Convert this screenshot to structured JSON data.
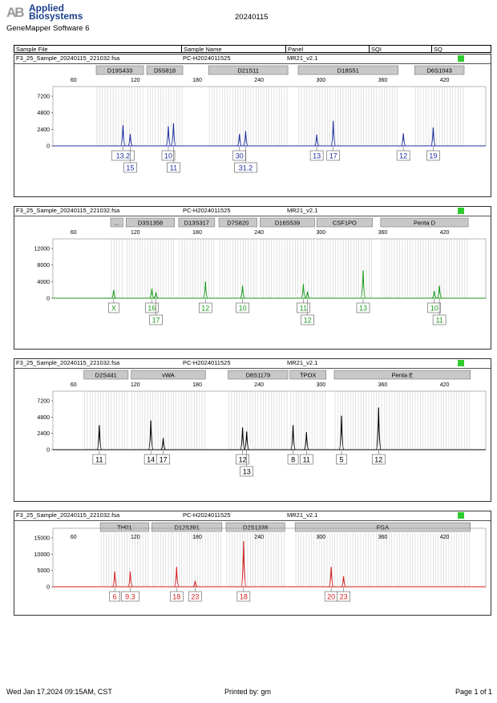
{
  "header": {
    "logo_mark": "AB",
    "brand_line1": "Applied",
    "brand_line2": "Biosystems",
    "software": "GeneMapper Software 6",
    "title": "20240115"
  },
  "columns": [
    "Sample File",
    "Sample Name",
    "Panel",
    "SQI",
    "SQ"
  ],
  "footer": {
    "date": "Wed Jan 17,2024 09:15AM, CST",
    "printed_by": "Printed by: gm",
    "page": "Page 1 of 1"
  },
  "panels": [
    {
      "sample_file": "F3_25_Sample_20240115_221032.fsa",
      "sample_name": "PC-H2024011525",
      "panel": "MR21_v2.1",
      "color": "#1f2fa0",
      "quality_color": "#2ecc2e",
      "x_ticks": [
        "60",
        "120",
        "180",
        "240",
        "300",
        "360",
        "420"
      ],
      "y_ticks": [
        "7200",
        "4800",
        "2400",
        "0"
      ],
      "loci": [
        {
          "label": "D19S433",
          "from": 82,
          "to": 128
        },
        {
          "label": "D5S818",
          "from": 131,
          "to": 166
        },
        {
          "label": "D21S11",
          "from": 191,
          "to": 268
        },
        {
          "label": "D18S51",
          "from": 278,
          "to": 375
        },
        {
          "label": "D6S1043",
          "from": 391,
          "to": 439
        }
      ],
      "alleles": [
        {
          "label": "13.2",
          "pos": 108,
          "height": 0.35,
          "row": 1
        },
        {
          "label": "15",
          "pos": 115,
          "height": 0.2,
          "row": 2
        },
        {
          "label": "10",
          "pos": 152,
          "height": 0.33,
          "row": 1
        },
        {
          "label": "11",
          "pos": 157,
          "height": 0.38,
          "row": 2
        },
        {
          "label": "30",
          "pos": 221,
          "height": 0.2,
          "row": 1
        },
        {
          "label": "31.2",
          "pos": 227,
          "height": 0.25,
          "row": 2
        },
        {
          "label": "13",
          "pos": 296,
          "height": 0.19,
          "row": 1
        },
        {
          "label": "17",
          "pos": 312,
          "height": 0.42,
          "row": 1
        },
        {
          "label": "12",
          "pos": 380,
          "height": 0.21,
          "row": 1
        },
        {
          "label": "19",
          "pos": 409,
          "height": 0.31,
          "row": 1
        }
      ]
    },
    {
      "sample_file": "F3_25_Sample_20240115_221032.fsa",
      "sample_name": "PC-H2024011525",
      "panel": "MR21_v2.1",
      "color": "#1c9a1c",
      "quality_color": "#2ecc2e",
      "x_ticks": [
        "60",
        "120",
        "180",
        "240",
        "300",
        "360",
        "420"
      ],
      "y_ticks": [
        "12000",
        "8000",
        "4000",
        "0"
      ],
      "loci": [
        {
          "label": "...",
          "from": 96,
          "to": 108
        },
        {
          "label": "D3S1358",
          "from": 111,
          "to": 158
        },
        {
          "label": "D13S317",
          "from": 162,
          "to": 197
        },
        {
          "label": "D7S820",
          "from": 201,
          "to": 238
        },
        {
          "label": "D16S539",
          "from": 241,
          "to": 294
        },
        {
          "label": "CSF1PO",
          "from": 296,
          "to": 350
        },
        {
          "label": "Penta D",
          "from": 358,
          "to": 443
        }
      ],
      "alleles": [
        {
          "label": "X",
          "pos": 99,
          "height": 0.14,
          "row": 1
        },
        {
          "label": "16",
          "pos": 136,
          "height": 0.16,
          "row": 1
        },
        {
          "label": "17",
          "pos": 140,
          "height": 0.1,
          "row": 2
        },
        {
          "label": "12",
          "pos": 188,
          "height": 0.28,
          "row": 1
        },
        {
          "label": "10",
          "pos": 224,
          "height": 0.21,
          "row": 1
        },
        {
          "label": "11",
          "pos": 283,
          "height": 0.24,
          "row": 1
        },
        {
          "label": "12",
          "pos": 287,
          "height": 0.11,
          "row": 2
        },
        {
          "label": "13",
          "pos": 341,
          "height": 0.47,
          "row": 1
        },
        {
          "label": "10",
          "pos": 410,
          "height": 0.12,
          "row": 1
        },
        {
          "label": "11",
          "pos": 415,
          "height": 0.21,
          "row": 2
        }
      ]
    },
    {
      "sample_file": "F3_25_Sample_20240115_221032.fsa",
      "sample_name": "PC-H2024011525",
      "panel": "MR21_v2.1",
      "color": "#000000",
      "quality_color": "#2ecc2e",
      "x_ticks": [
        "60",
        "120",
        "180",
        "240",
        "300",
        "360",
        "420"
      ],
      "y_ticks": [
        "7200",
        "4800",
        "2400",
        "0"
      ],
      "loci": [
        {
          "label": "D2S441",
          "from": 70,
          "to": 113
        },
        {
          "label": "vWA",
          "from": 116,
          "to": 188
        },
        {
          "label": "D8S1179",
          "from": 210,
          "to": 268
        },
        {
          "label": "TPOX",
          "from": 270,
          "to": 305
        },
        {
          "label": "Penta E",
          "from": 313,
          "to": 445
        }
      ],
      "alleles": [
        {
          "label": "11",
          "pos": 85,
          "height": 0.42,
          "row": 1
        },
        {
          "label": "14",
          "pos": 135,
          "height": 0.5,
          "row": 1
        },
        {
          "label": "17",
          "pos": 147,
          "height": 0.2,
          "row": 1
        },
        {
          "label": "12",
          "pos": 224,
          "height": 0.38,
          "row": 1
        },
        {
          "label": "13",
          "pos": 228,
          "height": 0.31,
          "row": 2
        },
        {
          "label": "8",
          "pos": 273,
          "height": 0.42,
          "row": 1
        },
        {
          "label": "11",
          "pos": 286,
          "height": 0.3,
          "row": 1
        },
        {
          "label": "5",
          "pos": 320,
          "height": 0.58,
          "row": 1
        },
        {
          "label": "12",
          "pos": 356,
          "height": 0.72,
          "row": 1
        }
      ]
    },
    {
      "sample_file": "F3_25_Sample_20240115_221032.fsa",
      "sample_name": "PC-H2024011525",
      "panel": "MR21_v2.1",
      "color": "#d41f1f",
      "quality_color": "#2ecc2e",
      "x_ticks": [
        "60",
        "120",
        "180",
        "240",
        "300",
        "360",
        "420"
      ],
      "y_ticks": [
        "15000",
        "10000",
        "5000",
        "0"
      ],
      "loci": [
        {
          "label": "TH01",
          "from": 86,
          "to": 133
        },
        {
          "label": "D12S391",
          "from": 136,
          "to": 204
        },
        {
          "label": "D2S1338",
          "from": 208,
          "to": 265
        },
        {
          "label": "FGA",
          "from": 275,
          "to": 445
        }
      ],
      "alleles": [
        {
          "label": "6",
          "pos": 100,
          "height": 0.26,
          "row": 1
        },
        {
          "label": "9.3",
          "pos": 115,
          "height": 0.26,
          "row": 1
        },
        {
          "label": "18",
          "pos": 160,
          "height": 0.34,
          "row": 1
        },
        {
          "label": "23",
          "pos": 178,
          "height": 0.1,
          "row": 1
        },
        {
          "label": "18",
          "pos": 225,
          "height": 0.78,
          "row": 1
        },
        {
          "label": "20",
          "pos": 310,
          "height": 0.34,
          "row": 1
        },
        {
          "label": "23",
          "pos": 322,
          "height": 0.18,
          "row": 1
        }
      ]
    }
  ]
}
